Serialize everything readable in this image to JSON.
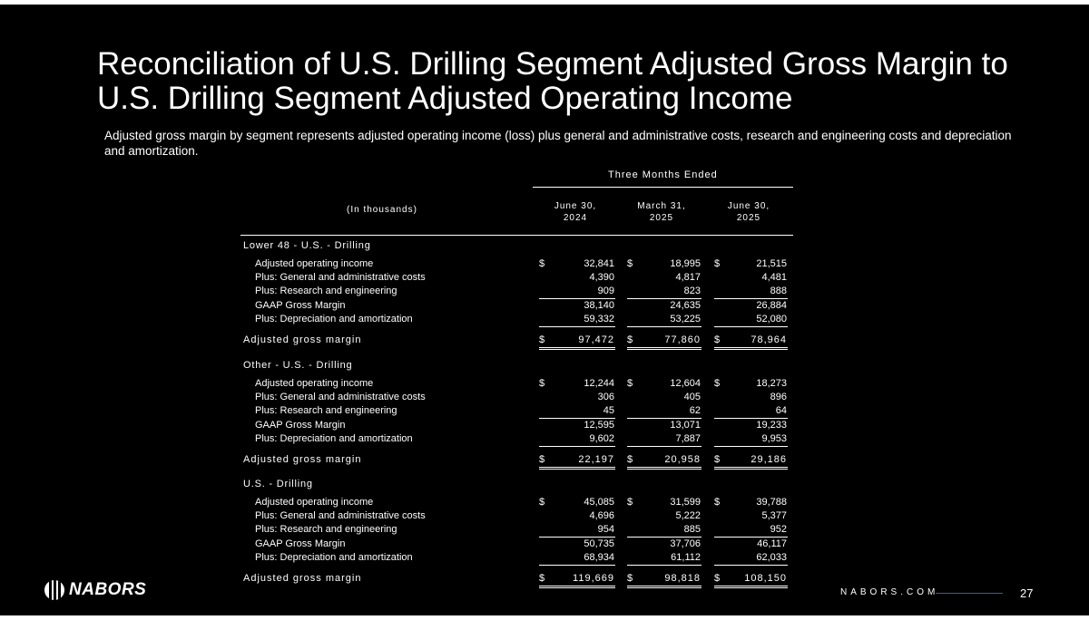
{
  "title_line1": "Reconciliation of U.S. Drilling Segment Adjusted Gross Margin to",
  "title_line2": "U.S. Drilling Segment Adjusted Operating Income",
  "description": "Adjusted gross margin by segment represents adjusted operating income  (loss) plus general and administrative costs, research and engineering costs and depreciation and amortization.",
  "table": {
    "group_header": "Three Months Ended",
    "units_label": "(In thousands)",
    "columns": [
      {
        "line1": "June 30,",
        "line2": "2024"
      },
      {
        "line1": "March 31,",
        "line2": "2025"
      },
      {
        "line1": "June 30,",
        "line2": "2025"
      }
    ],
    "currency": "$",
    "sections": [
      {
        "name": "Lower 48 - U.S. - Drilling",
        "rows": [
          {
            "label": "Adjusted operating income",
            "values": [
              "32,841",
              "18,995",
              "21,515"
            ]
          },
          {
            "label": "Plus: General and administrative costs",
            "values": [
              "4,390",
              "4,817",
              "4,481"
            ]
          },
          {
            "label": "Plus: Research and engineering",
            "values": [
              "909",
              "823",
              "888"
            ]
          },
          {
            "label": "GAAP Gross Margin",
            "values": [
              "38,140",
              "24,635",
              "26,884"
            ]
          },
          {
            "label": "Plus: Depreciation and amortization",
            "values": [
              "59,332",
              "53,225",
              "52,080"
            ]
          }
        ],
        "total": {
          "label": "Adjusted gross margin",
          "values": [
            "97,472",
            "77,860",
            "78,964"
          ]
        }
      },
      {
        "name": "Other - U.S. - Drilling",
        "rows": [
          {
            "label": "Adjusted operating income",
            "values": [
              "12,244",
              "12,604",
              "18,273"
            ]
          },
          {
            "label": "Plus: General and administrative costs",
            "values": [
              "306",
              "405",
              "896"
            ]
          },
          {
            "label": "Plus: Research and engineering",
            "values": [
              "45",
              "62",
              "64"
            ]
          },
          {
            "label": "GAAP Gross Margin",
            "values": [
              "12,595",
              "13,071",
              "19,233"
            ]
          },
          {
            "label": "Plus: Depreciation and amortization",
            "values": [
              "9,602",
              "7,887",
              "9,953"
            ]
          }
        ],
        "total": {
          "label": "Adjusted gross margin",
          "values": [
            "22,197",
            "20,958",
            "29,186"
          ]
        }
      },
      {
        "name": "U.S. - Drilling",
        "rows": [
          {
            "label": "Adjusted operating income",
            "values": [
              "45,085",
              "31,599",
              "39,788"
            ]
          },
          {
            "label": "Plus: General and administrative costs",
            "values": [
              "4,696",
              "5,222",
              "5,377"
            ]
          },
          {
            "label": "Plus: Research and engineering",
            "values": [
              "954",
              "885",
              "952"
            ]
          },
          {
            "label": "GAAP Gross Margin",
            "values": [
              "50,735",
              "37,706",
              "46,117"
            ]
          },
          {
            "label": "Plus: Depreciation and amortization",
            "values": [
              "68,934",
              "61,112",
              "62,033"
            ]
          }
        ],
        "total": {
          "label": "Adjusted gross margin",
          "values": [
            "119,669",
            "98,818",
            "108,150"
          ]
        }
      }
    ]
  },
  "footer": {
    "logo_text": "NABORS",
    "website": "NABORS.COM",
    "page_number": "27"
  }
}
